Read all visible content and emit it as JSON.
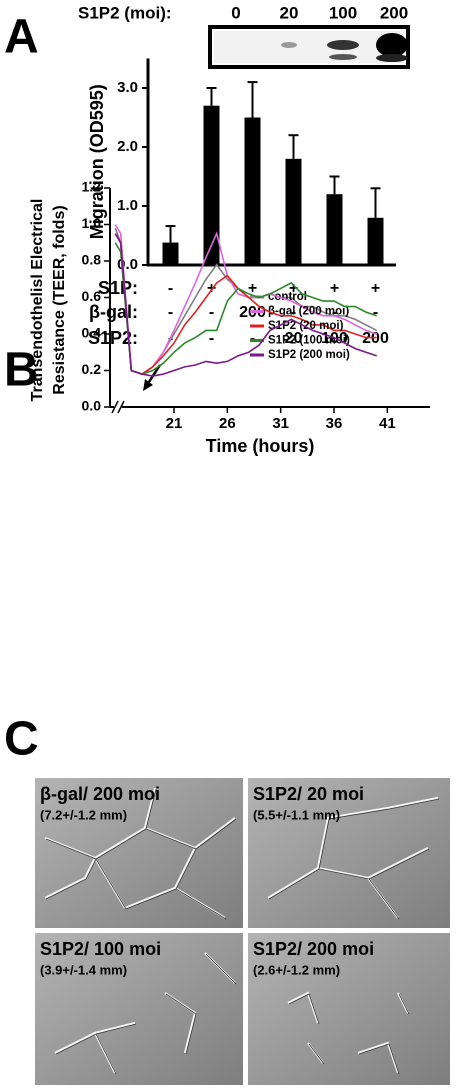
{
  "panel_labels": [
    "A",
    "B",
    "C"
  ],
  "blot": {
    "label": "S1P2 (moi):",
    "moi": [
      "0",
      "20",
      "100",
      "200"
    ]
  },
  "chart_data": [
    {
      "type": "bar",
      "ylabel": "Migration (OD595)",
      "categories": [
        null,
        null,
        null,
        null,
        null,
        null
      ],
      "values": [
        0.38,
        2.7,
        2.5,
        1.8,
        1.2,
        0.8
      ],
      "errors": [
        0.28,
        0.3,
        0.6,
        0.4,
        0.3,
        0.5
      ],
      "color": "#000000",
      "ylim": [
        0,
        3.5
      ],
      "yticks": [
        {
          "value": 0,
          "label": "0.0"
        },
        {
          "value": 1,
          "label": "1.0"
        },
        {
          "value": 2,
          "label": "2.0"
        },
        {
          "value": 3,
          "label": "3.0"
        }
      ],
      "conditions": [
        {
          "name": "S1P:",
          "values": [
            "-",
            "+",
            "+",
            "+",
            "+",
            "+"
          ]
        },
        {
          "name": "β-gal:",
          "values": [
            "-",
            "-",
            "200",
            "-",
            "-",
            "-"
          ]
        },
        {
          "name": "S1P2:",
          "values": [
            "-",
            "-",
            "-",
            "20",
            "100",
            "200"
          ]
        }
      ]
    },
    {
      "type": "line",
      "xlabel": "Time (hours)",
      "ylabel": [
        "Transendothelisl Electrical",
        "Resistance (TEER, folds)"
      ],
      "x": [
        15.5,
        16,
        17,
        18,
        19,
        20,
        21,
        22,
        23,
        24,
        25,
        26,
        27,
        28,
        29,
        30,
        31,
        32,
        33,
        34,
        35,
        36,
        37,
        38,
        39,
        40
      ],
      "series": [
        {
          "name": "control",
          "color": "#808080",
          "values": [
            0.98,
            0.9,
            0.2,
            0.18,
            0.22,
            0.3,
            0.4,
            0.5,
            0.6,
            0.7,
            0.78,
            0.7,
            0.65,
            0.6,
            0.6,
            0.62,
            0.6,
            0.6,
            0.55,
            0.55,
            0.52,
            0.5,
            0.5,
            0.48,
            0.45,
            0.42
          ]
        },
        {
          "name": "β-gal (200 moi)",
          "color": "#dd66dd",
          "values": [
            1.0,
            0.95,
            0.2,
            0.18,
            0.22,
            0.3,
            0.42,
            0.55,
            0.68,
            0.82,
            0.95,
            0.72,
            0.62,
            0.6,
            0.6,
            0.62,
            0.6,
            0.58,
            0.55,
            0.52,
            0.5,
            0.5,
            0.48,
            0.45,
            0.42,
            0.4
          ]
        },
        {
          "name": "S1P2 (20 moi)",
          "color": "#e02020",
          "values": [
            0.95,
            0.9,
            0.2,
            0.18,
            0.22,
            0.28,
            0.35,
            0.45,
            0.52,
            0.6,
            0.68,
            0.72,
            0.65,
            0.6,
            0.55,
            0.52,
            0.5,
            0.5,
            0.48,
            0.45,
            0.45,
            0.42,
            0.42,
            0.4,
            0.38,
            0.38
          ]
        },
        {
          "name": "S1P2 (100 moi)",
          "color": "#2a8a2a",
          "values": [
            0.9,
            0.85,
            0.2,
            0.18,
            0.2,
            0.24,
            0.3,
            0.35,
            0.38,
            0.42,
            0.42,
            0.58,
            0.65,
            0.62,
            0.6,
            0.62,
            0.65,
            0.68,
            0.62,
            0.6,
            0.58,
            0.58,
            0.55,
            0.55,
            0.52,
            0.5
          ]
        },
        {
          "name": "S1P2 (200 moi)",
          "color": "#7a1a8a",
          "values": [
            0.95,
            0.9,
            0.2,
            0.18,
            0.17,
            0.18,
            0.2,
            0.22,
            0.23,
            0.25,
            0.24,
            0.25,
            0.28,
            0.3,
            0.34,
            0.42,
            0.45,
            0.48,
            0.45,
            0.42,
            0.4,
            0.38,
            0.35,
            0.32,
            0.3,
            0.28
          ]
        }
      ],
      "xlim": [
        15,
        45
      ],
      "xticks": [
        21,
        26,
        31,
        36,
        41
      ],
      "ylim": [
        0,
        1.2
      ],
      "yticks": [
        {
          "value": 0,
          "label": "0.0"
        },
        0.2,
        0.4,
        0.6,
        0.8,
        {
          "value": 1,
          "label": "1.0"
        },
        1.2
      ],
      "legend": "upper right"
    }
  ],
  "micrographs": [
    {
      "title": "β-gal/ 200 moi",
      "measure": "(7.2+/-1.2 mm)"
    },
    {
      "title": "S1P2/ 20 moi",
      "measure": "(5.5+/-1.1 mm)"
    },
    {
      "title": "S1P2/ 100 moi",
      "measure": "(3.9+/-1.4 mm)"
    },
    {
      "title": "S1P2/ 200 moi",
      "measure": "(2.6+/-1.2 mm)"
    }
  ]
}
